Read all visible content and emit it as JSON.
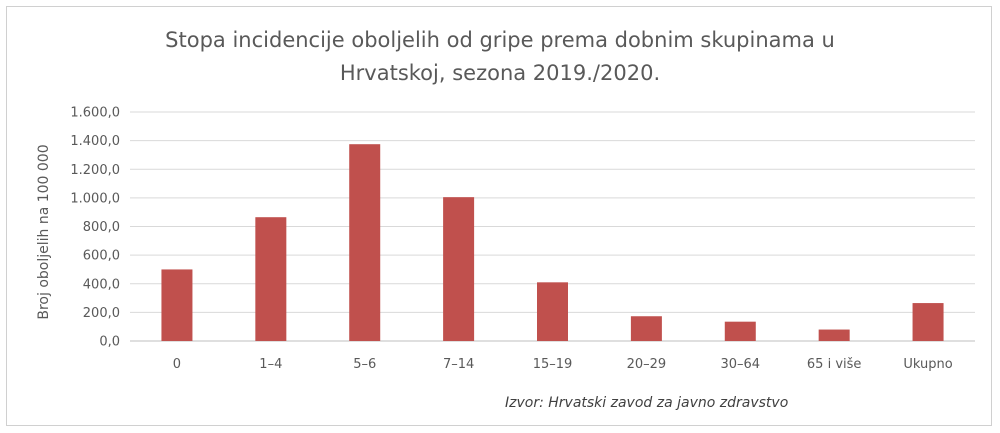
{
  "chart_data": {
    "type": "bar",
    "title": "Stopa incidencije oboljelih od gripe prema dobnim skupinama u Hrvatskoj, sezona 2019./2020.",
    "title_lines": [
      "Stopa incidencije oboljelih od gripe prema dobnim skupinama u",
      "Hrvatskoj, sezona 2019./2020."
    ],
    "ylabel": "Broj oboljelih na 100 000",
    "xlabel": "",
    "categories": [
      "0",
      "1–4",
      "5–6",
      "7–14",
      "15–19",
      "20–29",
      "30–64",
      "65 i više",
      "Ukupno"
    ],
    "values": [
      500,
      865,
      1375,
      1005,
      410,
      173,
      135,
      80,
      265
    ],
    "ylim": [
      0,
      1600
    ],
    "yticks": [
      0,
      200,
      400,
      600,
      800,
      1000,
      1200,
      1400,
      1600
    ],
    "ytick_labels": [
      "0,0",
      "200,0",
      "400,0",
      "600,0",
      "800,0",
      "1.000,0",
      "1.200,0",
      "1.400,0",
      "1.600,0"
    ],
    "grid": true,
    "bar_color": "#c0504d",
    "grid_color": "#d9d9d9",
    "source_note": "Izvor:  Hrvatski zavod za javno zdravstvo"
  }
}
